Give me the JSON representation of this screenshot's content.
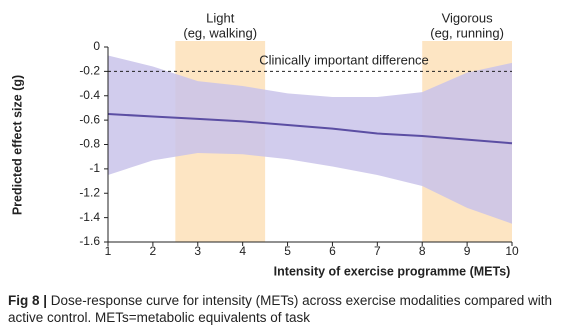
{
  "chart_data": {
    "type": "line",
    "x": [
      1,
      2,
      3,
      4,
      5,
      6,
      7,
      8,
      9,
      10
    ],
    "series": [
      {
        "color": "#5b4ea3",
        "values": [
          -0.55,
          -0.57,
          -0.59,
          -0.61,
          -0.64,
          -0.67,
          -0.71,
          -0.73,
          -0.76,
          -0.79
        ]
      }
    ],
    "band": {
      "color": "#c9c3ea",
      "upper": [
        -0.07,
        -0.16,
        -0.28,
        -0.32,
        -0.38,
        -0.41,
        -0.41,
        -0.37,
        -0.21,
        -0.13
      ],
      "lower": [
        -1.05,
        -0.93,
        -0.87,
        -0.88,
        -0.92,
        -0.98,
        -1.05,
        -1.14,
        -1.32,
        -1.45
      ]
    },
    "regions": [
      {
        "xmin": 2.5,
        "xmax": 4.5,
        "label": "Light",
        "sublabel": "(eg, walking)",
        "color": "#fde5c3"
      },
      {
        "xmin": 8,
        "xmax": 10,
        "label": "Vigorous",
        "sublabel": "(eg, running)",
        "color": "#fde5c3"
      }
    ],
    "reference_line": {
      "y": -0.2,
      "label": "Clinically important difference"
    },
    "xlabel": "Intensity of exercise programme (METs)",
    "ylabel": "Predicted effect size (g)",
    "xlim": [
      1,
      10
    ],
    "xticks": [
      1,
      2,
      3,
      4,
      5,
      6,
      7,
      8,
      9,
      10
    ],
    "ylim": [
      -1.6,
      0
    ],
    "yticks": [
      0,
      -0.2,
      -0.4,
      -0.6,
      -0.8,
      -1.0,
      -1.2,
      -1.4,
      -1.6
    ],
    "caption_label": "Fig 8 |",
    "caption": "Dose-response curve for intensity (METs) across exercise modalities compared with active control. METs=metabolic equivalents of task"
  }
}
